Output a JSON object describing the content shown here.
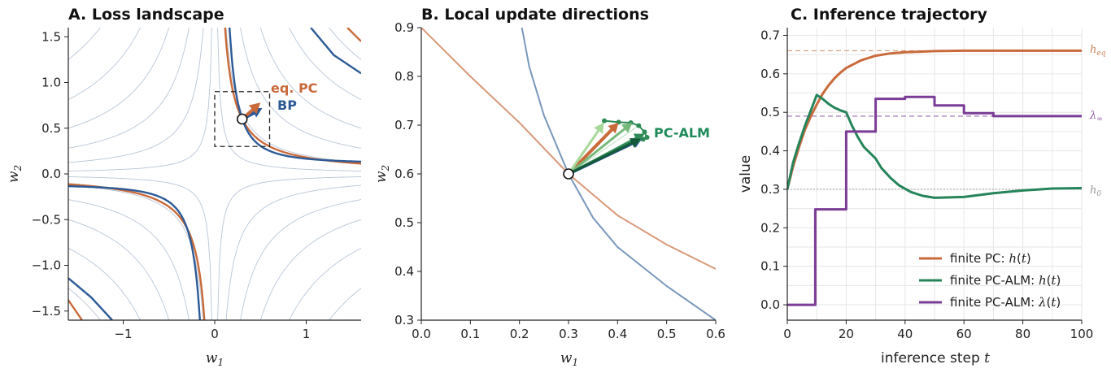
{
  "chart_data": [
    {
      "type": "line",
      "title": "A. Loss landscape",
      "xlabel": "w1",
      "ylabel": "w2",
      "xlim": [
        -1.6,
        1.6
      ],
      "ylim": [
        -1.6,
        1.6
      ],
      "xticks": [
        "−1",
        "0",
        "1"
      ],
      "yticks": [
        "−1.5",
        "−1.0",
        "−0.5",
        "0.0",
        "0.5",
        "1.0",
        "1.5"
      ],
      "grid": false,
      "point": {
        "w1": 0.3,
        "w2": 0.6
      },
      "inset_box": {
        "w1": [
          0.0,
          0.6
        ],
        "w2": [
          0.3,
          0.9
        ]
      },
      "series": [
        {
          "name": "eq. PC",
          "color": "#c96a3b",
          "curve": "w1*w2 = 0.18",
          "arrow_to": {
            "w1": 0.5,
            "w2": 0.78
          }
        },
        {
          "name": "BP",
          "color": "#2d5a96",
          "curve": "w1*w2 = 0.18 (steeper)",
          "arrow_to": {
            "w1": 0.52,
            "w2": 0.72
          }
        }
      ],
      "contours": "hyperbolic loss contours (light blue-gray)"
    },
    {
      "type": "line",
      "title": "B. Local update directions",
      "xlabel": "w1",
      "ylabel": "w2",
      "xlim": [
        0.0,
        0.6
      ],
      "ylim": [
        0.3,
        0.9
      ],
      "xticks": [
        "0.0",
        "0.1",
        "0.2",
        "0.3",
        "0.4",
        "0.5",
        "0.6"
      ],
      "yticks": [
        "0.3",
        "0.4",
        "0.5",
        "0.6",
        "0.7",
        "0.8",
        "0.9"
      ],
      "grid": false,
      "point": {
        "w1": 0.3,
        "w2": 0.6
      },
      "curves": [
        {
          "color": "#d9997a",
          "points": [
            [
              0.0,
              0.9
            ],
            [
              0.1,
              0.8
            ],
            [
              0.2,
              0.705
            ],
            [
              0.3,
              0.6
            ],
            [
              0.4,
              0.515
            ],
            [
              0.5,
              0.455
            ],
            [
              0.6,
              0.405
            ]
          ]
        },
        {
          "color": "#7997bb",
          "points": [
            [
              0.205,
              0.9
            ],
            [
              0.22,
              0.82
            ],
            [
              0.25,
              0.72
            ],
            [
              0.3,
              0.6
            ],
            [
              0.35,
              0.51
            ],
            [
              0.4,
              0.45
            ],
            [
              0.5,
              0.37
            ],
            [
              0.6,
              0.3
            ]
          ]
        }
      ],
      "arrows": [
        {
          "color": "#c96a3b",
          "to": {
            "w1": 0.402,
            "w2": 0.705
          }
        },
        {
          "color": "#2d5a96",
          "to": {
            "w1": 0.45,
            "w2": 0.672
          }
        },
        {
          "color": "#a8d79a",
          "to": {
            "w1": 0.372,
            "w2": 0.705
          }
        },
        {
          "color": "#76b97b",
          "to": {
            "w1": 0.43,
            "w2": 0.705
          }
        },
        {
          "color": "#2e8b57",
          "to": {
            "w1": 0.455,
            "w2": 0.682
          }
        },
        {
          "color": "#14593a",
          "to": {
            "w1": 0.447,
            "w2": 0.672
          }
        }
      ],
      "pcalm_trajectory": [
        [
          0.373,
          0.709
        ],
        [
          0.402,
          0.706
        ],
        [
          0.427,
          0.705
        ],
        [
          0.443,
          0.699
        ],
        [
          0.455,
          0.686
        ],
        [
          0.46,
          0.675
        ],
        [
          0.452,
          0.671
        ]
      ],
      "annotation": "PC-ALM",
      "annotation_color": "#1f8a5a"
    },
    {
      "type": "line",
      "title": "C. Inference trajectory",
      "xlabel": "inference step t",
      "ylabel": "value",
      "xlim": [
        0,
        100
      ],
      "ylim": [
        -0.04,
        0.72
      ],
      "xticks": [
        "0",
        "20",
        "40",
        "60",
        "80",
        "100"
      ],
      "yticks": [
        "0.0",
        "0.1",
        "0.2",
        "0.3",
        "0.4",
        "0.5",
        "0.6",
        "0.7"
      ],
      "grid": true,
      "legend_position": "lower-right",
      "reference_lines": [
        {
          "label": "heq",
          "y": 0.66,
          "color": "#d19a7b"
        },
        {
          "label": "λ∞",
          "y": 0.49,
          "color": "#9a6bb0"
        },
        {
          "label": "h0",
          "y": 0.3,
          "color": "#aaaaaa"
        }
      ],
      "series": [
        {
          "name": "finite PC: h(t)",
          "color": "#c96a3b",
          "x": [
            0,
            2,
            4,
            6,
            8,
            10,
            12,
            14,
            16,
            18,
            20,
            25,
            30,
            35,
            40,
            50,
            60,
            70,
            80,
            90,
            100
          ],
          "y": [
            0.3,
            0.36,
            0.41,
            0.455,
            0.49,
            0.52,
            0.548,
            0.57,
            0.588,
            0.603,
            0.615,
            0.635,
            0.647,
            0.653,
            0.656,
            0.659,
            0.66,
            0.66,
            0.66,
            0.66,
            0.66
          ]
        },
        {
          "name": "finite PC-ALM: h(t)",
          "color": "#25845a",
          "x": [
            0,
            2,
            4,
            6,
            8,
            10,
            12,
            14,
            16,
            18,
            20,
            22,
            24,
            26,
            28,
            30,
            32,
            35,
            38,
            42,
            46,
            50,
            60,
            70,
            80,
            90,
            100
          ],
          "y": [
            0.3,
            0.37,
            0.42,
            0.465,
            0.505,
            0.545,
            0.535,
            0.522,
            0.512,
            0.505,
            0.5,
            0.465,
            0.435,
            0.41,
            0.395,
            0.38,
            0.355,
            0.33,
            0.31,
            0.293,
            0.283,
            0.278,
            0.28,
            0.29,
            0.297,
            0.302,
            0.303
          ]
        },
        {
          "name": "finite PC-ALM: λ(t)",
          "color": "#7a3c96",
          "x": [
            0,
            9.5,
            9.5,
            20,
            20,
            30,
            30,
            40,
            40,
            50,
            50,
            60,
            60,
            70,
            70,
            80,
            80,
            100
          ],
          "y": [
            0.0,
            0.0,
            0.248,
            0.248,
            0.45,
            0.45,
            0.535,
            0.535,
            0.54,
            0.54,
            0.518,
            0.518,
            0.498,
            0.498,
            0.49,
            0.49,
            0.49,
            0.49
          ]
        }
      ]
    }
  ]
}
